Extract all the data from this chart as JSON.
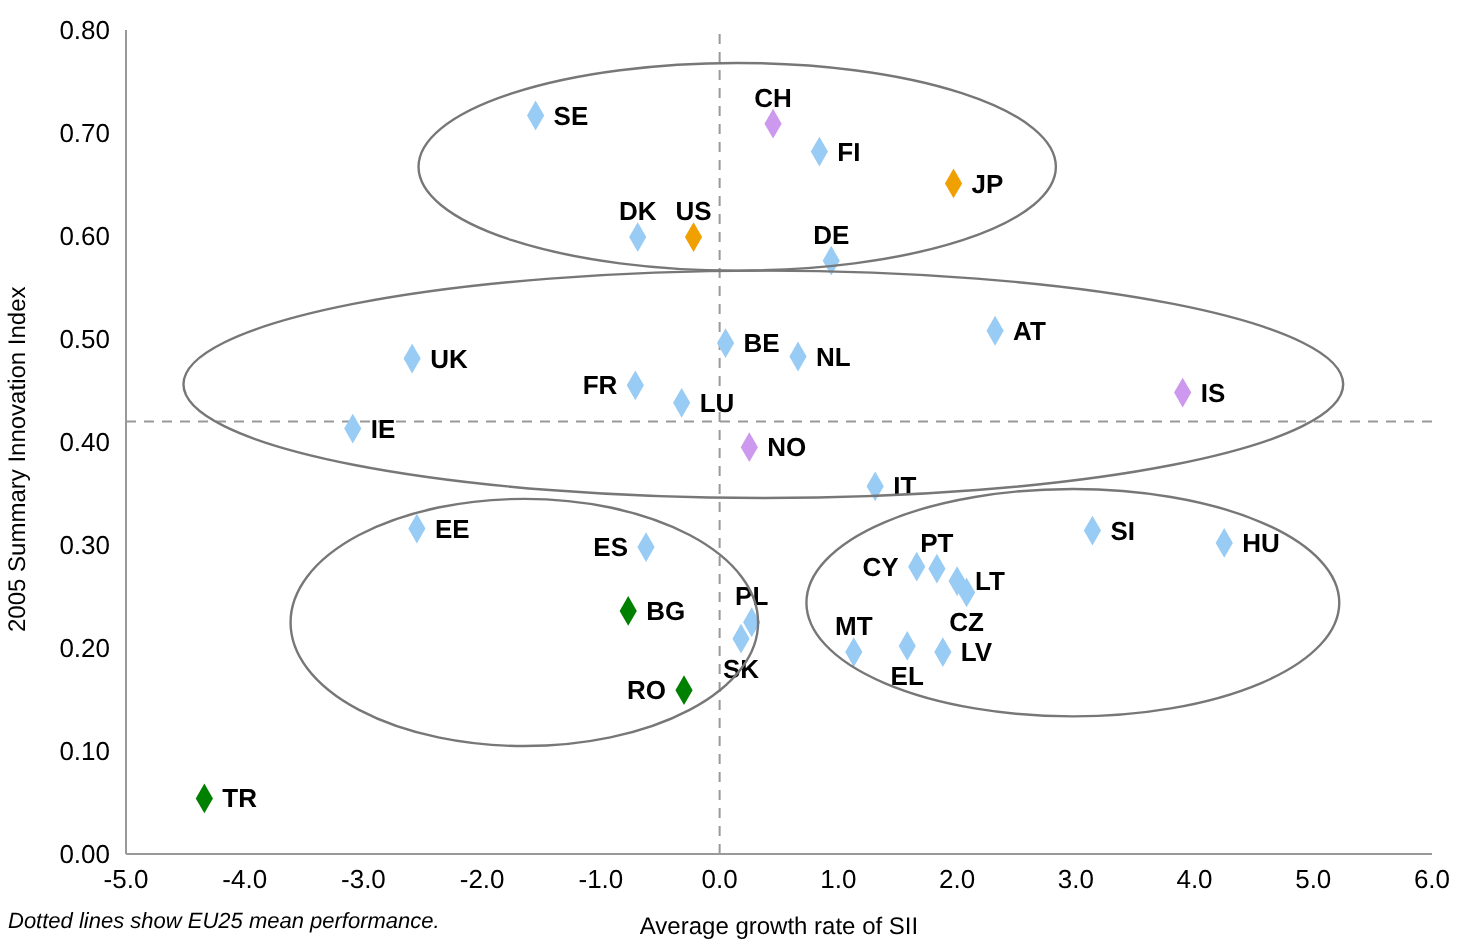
{
  "chart_data": {
    "type": "scatter",
    "xlabel": "Average growth rate of SII",
    "ylabel": "2005 Summary Innovation Index",
    "xlim": [
      -5,
      6
    ],
    "xticks": [
      {
        "value": -5,
        "label": "-5.0"
      },
      {
        "value": -4,
        "label": "-4.0"
      },
      {
        "value": -3,
        "label": "-3.0"
      },
      {
        "value": -2,
        "label": "-2.0"
      },
      {
        "value": -1,
        "label": "-1.0"
      },
      {
        "value": 0,
        "label": "0.0"
      },
      {
        "value": 1,
        "label": "1.0"
      },
      {
        "value": 2,
        "label": "2.0"
      },
      {
        "value": 3,
        "label": "3.0"
      },
      {
        "value": 4,
        "label": "4.0"
      },
      {
        "value": 5,
        "label": "5.0"
      },
      {
        "value": 6,
        "label": "6.0"
      }
    ],
    "ylim": [
      0,
      0.8
    ],
    "yticks": [
      {
        "value": 0,
        "label": "0.00"
      },
      {
        "value": 0.1,
        "label": "0.10"
      },
      {
        "value": 0.2,
        "label": "0.20"
      },
      {
        "value": 0.3,
        "label": "0.30"
      },
      {
        "value": 0.4,
        "label": "0.40"
      },
      {
        "value": 0.5,
        "label": "0.50"
      },
      {
        "value": 0.6,
        "label": "0.60"
      },
      {
        "value": 0.7,
        "label": "0.70"
      },
      {
        "value": 0.8,
        "label": "0.80"
      }
    ],
    "marker": "diamond",
    "grid": false,
    "legend": false,
    "series": [
      {
        "color": "#99ccf5",
        "x": [
          -1.55,
          0.84,
          -0.69,
          0.94,
          2.32,
          0.05,
          0.66,
          -2.59,
          -0.71,
          -0.32,
          -3.09,
          1.31,
          -2.55,
          -0.62,
          3.14,
          4.25,
          1.66,
          1.83,
          2.0,
          2.08,
          0.27,
          0.18,
          1.13,
          1.58,
          1.88
        ],
        "values": [
          0.717,
          0.682,
          0.599,
          0.576,
          0.508,
          0.496,
          0.483,
          0.481,
          0.455,
          0.438,
          0.413,
          0.357,
          0.316,
          0.298,
          0.314,
          0.302,
          0.279,
          0.277,
          0.265,
          0.254,
          0.225,
          0.209,
          0.196,
          0.202,
          0.196
        ]
      },
      {
        "color": "#f0a000",
        "x": [
          -0.22,
          1.97
        ],
        "values": [
          0.599,
          0.651
        ]
      },
      {
        "color": "#cc99ee",
        "x": [
          0.45,
          3.9,
          0.25
        ],
        "values": [
          0.709,
          0.448,
          0.395
        ]
      },
      {
        "color": "#008000",
        "x": [
          -0.77,
          -0.3,
          -4.34
        ],
        "values": [
          0.236,
          0.159,
          0.054
        ]
      }
    ],
    "ref_lines": [
      {
        "axis": "x",
        "value": 0,
        "line_style": "dashed",
        "color": "#999999"
      },
      {
        "axis": "y",
        "value": 0.42,
        "line_style": "dashed",
        "color": "#999999"
      }
    ],
    "annotations": [
      {
        "text": "SE",
        "x": -1.55,
        "y": 0.717
      },
      {
        "text": "CH",
        "x": 0.45,
        "y": 0.709
      },
      {
        "text": "FI",
        "x": 0.84,
        "y": 0.682
      },
      {
        "text": "JP",
        "x": 1.97,
        "y": 0.651
      },
      {
        "text": "DK",
        "x": -0.69,
        "y": 0.599
      },
      {
        "text": "US",
        "x": -0.22,
        "y": 0.599
      },
      {
        "text": "DE",
        "x": 0.94,
        "y": 0.576
      },
      {
        "text": "AT",
        "x": 2.32,
        "y": 0.508
      },
      {
        "text": "BE",
        "x": 0.05,
        "y": 0.496
      },
      {
        "text": "NL",
        "x": 0.66,
        "y": 0.483
      },
      {
        "text": "UK",
        "x": -2.59,
        "y": 0.481
      },
      {
        "text": "FR",
        "x": -0.71,
        "y": 0.455
      },
      {
        "text": "IS",
        "x": 3.9,
        "y": 0.448
      },
      {
        "text": "LU",
        "x": -0.32,
        "y": 0.438
      },
      {
        "text": "IE",
        "x": -3.09,
        "y": 0.413
      },
      {
        "text": "NO",
        "x": 0.25,
        "y": 0.395
      },
      {
        "text": "IT",
        "x": 1.31,
        "y": 0.357
      },
      {
        "text": "EE",
        "x": -2.55,
        "y": 0.316
      },
      {
        "text": "ES",
        "x": -0.62,
        "y": 0.298
      },
      {
        "text": "SI",
        "x": 3.14,
        "y": 0.314
      },
      {
        "text": "HU",
        "x": 4.25,
        "y": 0.302
      },
      {
        "text": "CY",
        "x": 1.66,
        "y": 0.279
      },
      {
        "text": "PT",
        "x": 1.83,
        "y": 0.277
      },
      {
        "text": "LT",
        "x": 2.0,
        "y": 0.265
      },
      {
        "text": "CZ",
        "x": 2.08,
        "y": 0.254
      },
      {
        "text": "BG",
        "x": -0.77,
        "y": 0.236
      },
      {
        "text": "PL",
        "x": 0.27,
        "y": 0.225
      },
      {
        "text": "SK",
        "x": 0.18,
        "y": 0.209
      },
      {
        "text": "MT",
        "x": 1.13,
        "y": 0.196
      },
      {
        "text": "EL",
        "x": 1.58,
        "y": 0.202
      },
      {
        "text": "LV",
        "x": 1.88,
        "y": 0.196
      },
      {
        "text": "RO",
        "x": -0.3,
        "y": 0.159
      },
      {
        "text": "TR",
        "x": -4.34,
        "y": 0.054
      },
      "Dotted lines show EU25 mean performance."
    ]
  }
}
